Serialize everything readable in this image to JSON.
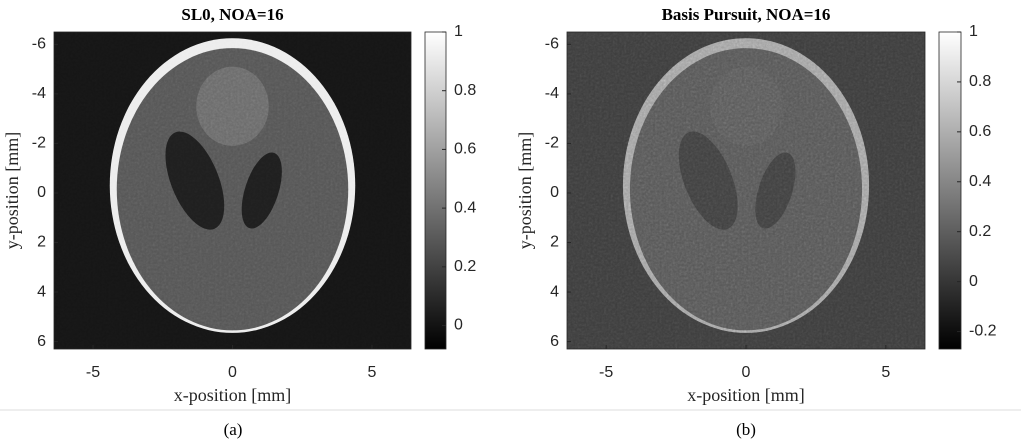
{
  "chart_data": [
    {
      "type": "image",
      "title": "SL0, NOA=16",
      "x_label": "x-position [mm]",
      "y_label": "y-position [mm]",
      "xlim": [
        -6.4,
        6.4
      ],
      "ylim": [
        -6.5,
        6.3
      ],
      "y_reversed": true,
      "xticks": [
        -5,
        0,
        5
      ],
      "yticks": [
        -6,
        -4,
        -2,
        0,
        2,
        4,
        6
      ],
      "clim": [
        -0.08,
        1
      ],
      "cticks": [
        0,
        0.2,
        0.4,
        0.6,
        0.8,
        1
      ],
      "colormap": "gray",
      "caption": "(a)"
    },
    {
      "type": "image",
      "title": "Basis Pursuit, NOA=16",
      "x_label": "x-position [mm]",
      "y_label": "y-position [mm]",
      "xlim": [
        -6.4,
        6.4
      ],
      "ylim": [
        -6.5,
        6.3
      ],
      "y_reversed": true,
      "xticks": [
        -5,
        0,
        5
      ],
      "yticks": [
        -6,
        -4,
        -2,
        0,
        2,
        4,
        6
      ],
      "clim": [
        -0.27,
        1
      ],
      "cticks": [
        -0.2,
        0,
        0.2,
        0.4,
        0.6,
        0.8,
        1
      ],
      "colormap": "gray",
      "caption": "(b)"
    }
  ]
}
